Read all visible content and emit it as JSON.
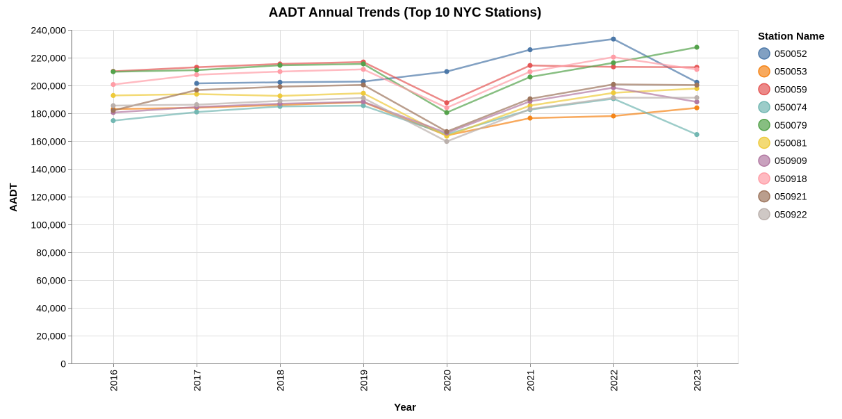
{
  "chart_data": {
    "type": "line",
    "title": "AADT Annual Trends (Top 10 NYC Stations)",
    "xlabel": "Year",
    "ylabel": "AADT",
    "x": [
      "2016",
      "2017",
      "2018",
      "2019",
      "2020",
      "2021",
      "2022",
      "2023"
    ],
    "ylim": [
      0,
      240000
    ],
    "yticks": [
      0,
      20000,
      40000,
      60000,
      80000,
      100000,
      120000,
      140000,
      160000,
      180000,
      200000,
      220000,
      240000
    ],
    "ytick_labels": [
      "0",
      "20,000",
      "40,000",
      "60,000",
      "80,000",
      "100,000",
      "120,000",
      "140,000",
      "160,000",
      "180,000",
      "200,000",
      "220,000",
      "240,000"
    ],
    "grid": true,
    "legend_title": "Station Name",
    "legend_position": "right",
    "series": [
      {
        "name": "050052",
        "color": "#4c78a8",
        "values": [
          null,
          201500,
          202300,
          202800,
          210000,
          225700,
          233400,
          202300
        ]
      },
      {
        "name": "050053",
        "color": "#f58518",
        "values": [
          183000,
          184000,
          186000,
          188000,
          164000,
          176500,
          178000,
          183900
        ]
      },
      {
        "name": "050059",
        "color": "#e45756",
        "values": [
          210200,
          213100,
          215500,
          216900,
          187600,
          214400,
          213400,
          213100
        ]
      },
      {
        "name": "050074",
        "color": "#72b7b2",
        "values": [
          174700,
          180900,
          184900,
          185500,
          164800,
          182600,
          190500,
          164700
        ]
      },
      {
        "name": "050079",
        "color": "#54a24b",
        "values": [
          209900,
          211000,
          214500,
          215500,
          180500,
          206100,
          216300,
          227500
        ]
      },
      {
        "name": "050081",
        "color": "#eeca3b",
        "values": [
          192800,
          193800,
          192500,
          194400,
          163500,
          185500,
          194700,
          197800
        ]
      },
      {
        "name": "050909",
        "color": "#b279a2",
        "values": [
          180500,
          184500,
          186900,
          188300,
          165800,
          188600,
          198400,
          188200
        ]
      },
      {
        "name": "050918",
        "color": "#ff9da6",
        "values": [
          200700,
          207700,
          210000,
          211600,
          184000,
          209900,
          220400,
          211500
        ]
      },
      {
        "name": "050921",
        "color": "#9d755d",
        "values": [
          182000,
          196700,
          199100,
          200400,
          166800,
          190400,
          200800,
          200300
        ]
      },
      {
        "name": "050922",
        "color": "#bab0ac",
        "values": [
          185500,
          186200,
          188900,
          191000,
          159700,
          183000,
          191200,
          191200
        ]
      }
    ]
  }
}
